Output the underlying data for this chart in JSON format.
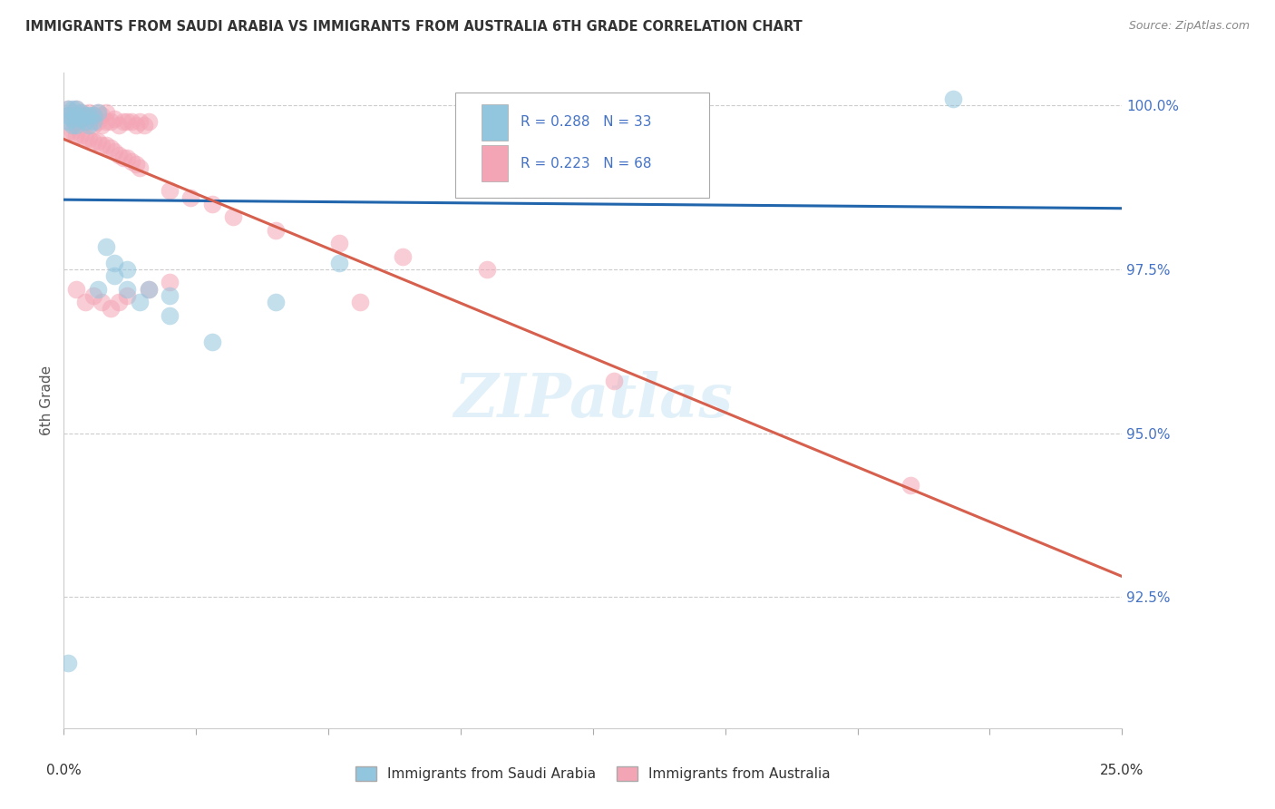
{
  "title": "IMMIGRANTS FROM SAUDI ARABIA VS IMMIGRANTS FROM AUSTRALIA 6TH GRADE CORRELATION CHART",
  "source": "Source: ZipAtlas.com",
  "ylabel": "6th Grade",
  "xlim": [
    0.0,
    0.25
  ],
  "ylim": [
    0.905,
    1.005
  ],
  "ytick_positions": [
    1.0,
    0.975,
    0.95,
    0.925
  ],
  "ytick_labels": [
    "100.0%",
    "97.5%",
    "95.0%",
    "92.5%"
  ],
  "legend_line1": "R = 0.288   N = 33",
  "legend_line2": "R = 0.223   N = 68",
  "legend_label_blue": "Immigrants from Saudi Arabia",
  "legend_label_pink": "Immigrants from Australia",
  "blue_color": "#92c5de",
  "pink_color": "#f4a5b5",
  "blue_line_color": "#2166ac",
  "pink_line_color": "#d6604d",
  "saudi_x": [
    0.001,
    0.002,
    0.001,
    0.003,
    0.002,
    0.001,
    0.002,
    0.003,
    0.004,
    0.003,
    0.004,
    0.005,
    0.005,
    0.006,
    0.007,
    0.006,
    0.007,
    0.008,
    0.01,
    0.012,
    0.015,
    0.018,
    0.025,
    0.035,
    0.05,
    0.065,
    0.21,
    0.001,
    0.008,
    0.012,
    0.015,
    0.02,
    0.025
  ],
  "saudi_y": [
    0.9995,
    0.9995,
    0.9985,
    0.9985,
    0.998,
    0.9975,
    0.997,
    0.997,
    0.999,
    0.9995,
    0.998,
    0.9985,
    0.9975,
    0.9985,
    0.9985,
    0.997,
    0.9975,
    0.999,
    0.9785,
    0.976,
    0.972,
    0.97,
    0.968,
    0.964,
    0.97,
    0.976,
    1.001,
    0.915,
    0.972,
    0.974,
    0.975,
    0.972,
    0.971
  ],
  "australia_x": [
    0.001,
    0.001,
    0.002,
    0.002,
    0.003,
    0.003,
    0.004,
    0.004,
    0.005,
    0.005,
    0.006,
    0.006,
    0.007,
    0.007,
    0.008,
    0.008,
    0.009,
    0.009,
    0.01,
    0.01,
    0.011,
    0.012,
    0.013,
    0.014,
    0.015,
    0.016,
    0.017,
    0.018,
    0.019,
    0.02,
    0.001,
    0.002,
    0.003,
    0.004,
    0.005,
    0.006,
    0.007,
    0.008,
    0.009,
    0.01,
    0.011,
    0.012,
    0.013,
    0.014,
    0.015,
    0.016,
    0.017,
    0.018,
    0.025,
    0.03,
    0.035,
    0.04,
    0.05,
    0.065,
    0.08,
    0.1,
    0.003,
    0.005,
    0.007,
    0.009,
    0.011,
    0.013,
    0.015,
    0.02,
    0.025,
    0.07,
    0.13,
    0.2
  ],
  "australia_y": [
    0.9995,
    0.9985,
    0.999,
    0.998,
    0.9995,
    0.9975,
    0.999,
    0.998,
    0.9985,
    0.9975,
    0.999,
    0.9975,
    0.9985,
    0.997,
    0.999,
    0.9975,
    0.9985,
    0.997,
    0.999,
    0.9975,
    0.9975,
    0.998,
    0.997,
    0.9975,
    0.9975,
    0.9975,
    0.997,
    0.9975,
    0.997,
    0.9975,
    0.996,
    0.996,
    0.9955,
    0.9955,
    0.995,
    0.995,
    0.9945,
    0.9945,
    0.994,
    0.994,
    0.9935,
    0.993,
    0.9925,
    0.992,
    0.992,
    0.9915,
    0.991,
    0.9905,
    0.987,
    0.986,
    0.985,
    0.983,
    0.981,
    0.979,
    0.977,
    0.975,
    0.972,
    0.97,
    0.971,
    0.97,
    0.969,
    0.97,
    0.971,
    0.972,
    0.973,
    0.97,
    0.958,
    0.942
  ]
}
